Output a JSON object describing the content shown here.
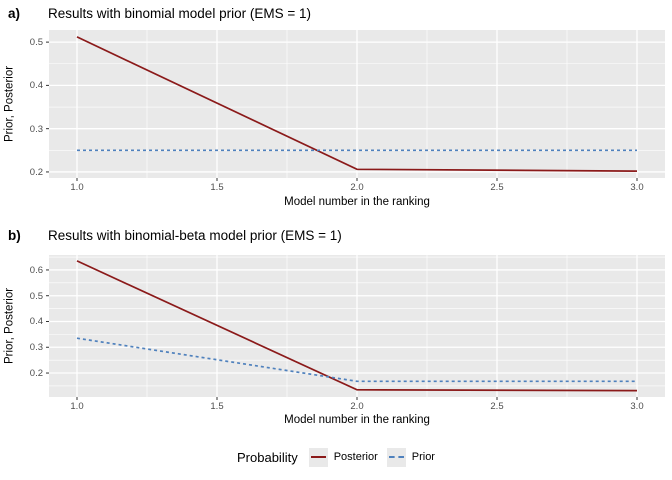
{
  "legend": {
    "title": "Probability",
    "items": [
      {
        "label": "Posterior",
        "color": "#8B1A1A",
        "line_style": "solid"
      },
      {
        "label": "Prior",
        "color": "#4F81BD",
        "line_style": "dashed"
      }
    ],
    "position": "bottom"
  },
  "chart_data": [
    {
      "type": "line",
      "tag": "a)",
      "title": "Results with binomial model prior (EMS = 1)",
      "xlabel": "Model number in the ranking",
      "ylabel": "Prior, Posterior",
      "x": [
        1,
        2,
        3
      ],
      "series": [
        {
          "name": "Posterior",
          "values": [
            0.512,
            0.206,
            0.202
          ],
          "color": "#8B1A1A",
          "line_style": "solid"
        },
        {
          "name": "Prior",
          "values": [
            0.25,
            0.25,
            0.25
          ],
          "color": "#4F81BD",
          "line_style": "dashed"
        }
      ],
      "xlim": [
        0.9,
        3.1
      ],
      "ylim": [
        0.186,
        0.528
      ],
      "xticks": {
        "values": [
          1.0,
          1.5,
          2.0,
          2.5,
          3.0
        ],
        "labels": [
          "1.0",
          "1.5",
          "2.0",
          "2.5",
          "3.0"
        ]
      },
      "yticks": {
        "values": [
          0.2,
          0.3,
          0.4,
          0.5
        ],
        "labels": [
          "0.2",
          "0.3",
          "0.4",
          "0.5"
        ]
      },
      "xminor": [
        1.25,
        1.75,
        2.25,
        2.75
      ],
      "yminor": [
        0.25,
        0.35,
        0.45
      ],
      "grid": "on",
      "panel_bg": "#E9E9E9",
      "grid_color": "#FFFFFF",
      "tick_color": "#333333"
    },
    {
      "type": "line",
      "tag": "b)",
      "title": "Results with binomial-beta model prior (EMS = 1)",
      "xlabel": "Model number in the ranking",
      "ylabel": "Prior, Posterior",
      "x": [
        1,
        2,
        3
      ],
      "series": [
        {
          "name": "Posterior",
          "values": [
            0.635,
            0.135,
            0.132
          ],
          "color": "#8B1A1A",
          "line_style": "solid"
        },
        {
          "name": "Prior",
          "values": [
            0.335,
            0.168,
            0.168
          ],
          "color": "#4F81BD",
          "line_style": "dashed"
        }
      ],
      "xlim": [
        0.9,
        3.1
      ],
      "ylim": [
        0.107,
        0.658
      ],
      "xticks": {
        "values": [
          1.0,
          1.5,
          2.0,
          2.5,
          3.0
        ],
        "labels": [
          "1.0",
          "1.5",
          "2.0",
          "2.5",
          "3.0"
        ]
      },
      "yticks": {
        "values": [
          0.2,
          0.3,
          0.4,
          0.5,
          0.6
        ],
        "labels": [
          "0.2",
          "0.3",
          "0.4",
          "0.5",
          "0.6"
        ]
      },
      "xminor": [
        1.25,
        1.75,
        2.25,
        2.75
      ],
      "yminor": [
        0.15,
        0.25,
        0.35,
        0.45,
        0.55,
        0.65
      ],
      "grid": "on",
      "panel_bg": "#E9E9E9",
      "grid_color": "#FFFFFF",
      "tick_color": "#333333"
    }
  ]
}
